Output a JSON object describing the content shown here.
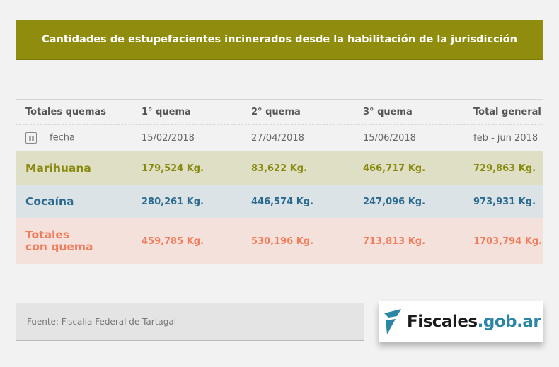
{
  "title": "Cantidades de estupefacientes incinerados desde la habilitación de la jurisdicción",
  "headers": [
    "Totales quemas",
    "1° quema",
    "2° quema",
    "3° quema",
    "Total general"
  ],
  "date_row": {
    "label": "fecha",
    "icon": "calendar-icon",
    "values": [
      "15/02/2018",
      "27/04/2018",
      "15/06/2018",
      "feb - jun 2018"
    ]
  },
  "rows": [
    {
      "label": "Marihuana",
      "values": [
        "179,524 Kg.",
        "83,622 Kg.",
        "466,717 Kg.",
        "729,863 Kg."
      ],
      "color": "#8a8a10"
    },
    {
      "label": "Cocaína",
      "values": [
        "280,261 Kg.",
        "446,574 Kg.",
        "247,096 Kg.",
        "973,931 Kg."
      ],
      "color": "#2b6a8f"
    },
    {
      "label_line1": "Totales",
      "label_line2": "con quema",
      "values": [
        "459,785 Kg.",
        "530,196 Kg.",
        "713,813 Kg.",
        "1703,794 Kg."
      ],
      "color": "#f07e5c"
    }
  ],
  "source": "Fuente: Fiscalía Federal de Tartagal",
  "logo": {
    "name": "Fiscales",
    "domain": ".gob.ar"
  }
}
